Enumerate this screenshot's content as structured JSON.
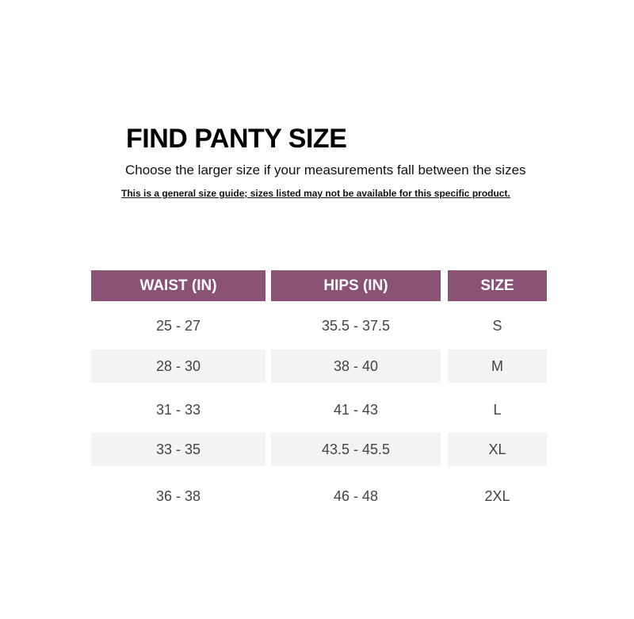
{
  "title": "FIND PANTY SIZE",
  "subtitle": "Choose the larger size if your measurements fall between the sizes",
  "note": "This is a general size guide; sizes listed may not be available for this specific product.",
  "colors": {
    "header": "#8a5275",
    "stripe": "#f3f2f5"
  },
  "table": {
    "headers": [
      "WAIST (IN)",
      "HIPS (IN)",
      "SIZE"
    ],
    "rows": [
      [
        "25 - 27",
        "35.5 - 37.5",
        "S"
      ],
      [
        "28 - 30",
        "38 - 40",
        "M"
      ],
      [
        "31 - 33",
        "41 - 43",
        "L"
      ],
      [
        "33 - 35",
        "43.5 - 45.5",
        "XL"
      ],
      [
        "36 - 38",
        "46 - 48",
        "2XL"
      ]
    ]
  }
}
